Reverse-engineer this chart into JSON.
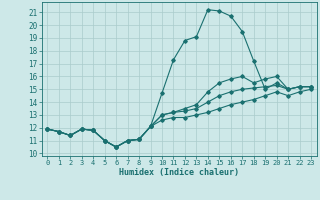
{
  "title": "",
  "xlabel": "Humidex (Indice chaleur)",
  "background_color": "#cde8e8",
  "grid_color": "#aacccc",
  "line_color": "#1a7070",
  "xlim": [
    -0.5,
    23.5
  ],
  "ylim": [
    9.8,
    21.8
  ],
  "yticks": [
    10,
    11,
    12,
    13,
    14,
    15,
    16,
    17,
    18,
    19,
    20,
    21
  ],
  "xticks": [
    0,
    1,
    2,
    3,
    4,
    5,
    6,
    7,
    8,
    9,
    10,
    11,
    12,
    13,
    14,
    15,
    16,
    17,
    18,
    19,
    20,
    21,
    22,
    23
  ],
  "line1_x": [
    0,
    1,
    2,
    3,
    4,
    5,
    6,
    7,
    8,
    9,
    10,
    11,
    12,
    13,
    14,
    15,
    16,
    17,
    18,
    19,
    20,
    21,
    22,
    23
  ],
  "line1_y": [
    11.9,
    11.7,
    11.4,
    11.9,
    11.8,
    11.0,
    10.5,
    11.0,
    11.1,
    12.1,
    14.7,
    17.3,
    18.8,
    19.1,
    21.2,
    21.1,
    20.7,
    19.5,
    17.2,
    15.0,
    15.5,
    15.0,
    15.2,
    15.2
  ],
  "line2_x": [
    0,
    1,
    2,
    3,
    4,
    5,
    6,
    7,
    8,
    9,
    10,
    11,
    12,
    13,
    14,
    15,
    16,
    17,
    18,
    19,
    20,
    21,
    22,
    23
  ],
  "line2_y": [
    11.9,
    11.7,
    11.4,
    11.9,
    11.8,
    11.0,
    10.5,
    11.0,
    11.1,
    12.1,
    13.0,
    13.2,
    13.5,
    13.8,
    14.8,
    15.5,
    15.8,
    16.0,
    15.5,
    15.8,
    16.0,
    15.0,
    15.2,
    15.2
  ],
  "line3_x": [
    0,
    1,
    2,
    3,
    4,
    5,
    6,
    7,
    8,
    9,
    10,
    11,
    12,
    13,
    14,
    15,
    16,
    17,
    18,
    19,
    20,
    21,
    22,
    23
  ],
  "line3_y": [
    11.9,
    11.7,
    11.4,
    11.9,
    11.8,
    11.0,
    10.5,
    11.0,
    11.1,
    12.1,
    13.0,
    13.2,
    13.3,
    13.5,
    14.0,
    14.5,
    14.8,
    15.0,
    15.1,
    15.2,
    15.3,
    15.0,
    15.2,
    15.2
  ],
  "line4_x": [
    0,
    1,
    2,
    3,
    4,
    5,
    6,
    7,
    8,
    9,
    10,
    11,
    12,
    13,
    14,
    15,
    16,
    17,
    18,
    19,
    20,
    21,
    22,
    23
  ],
  "line4_y": [
    11.9,
    11.7,
    11.4,
    11.9,
    11.8,
    11.0,
    10.5,
    11.0,
    11.1,
    12.1,
    12.6,
    12.8,
    12.8,
    13.0,
    13.2,
    13.5,
    13.8,
    14.0,
    14.2,
    14.5,
    14.8,
    14.5,
    14.8,
    15.0
  ]
}
